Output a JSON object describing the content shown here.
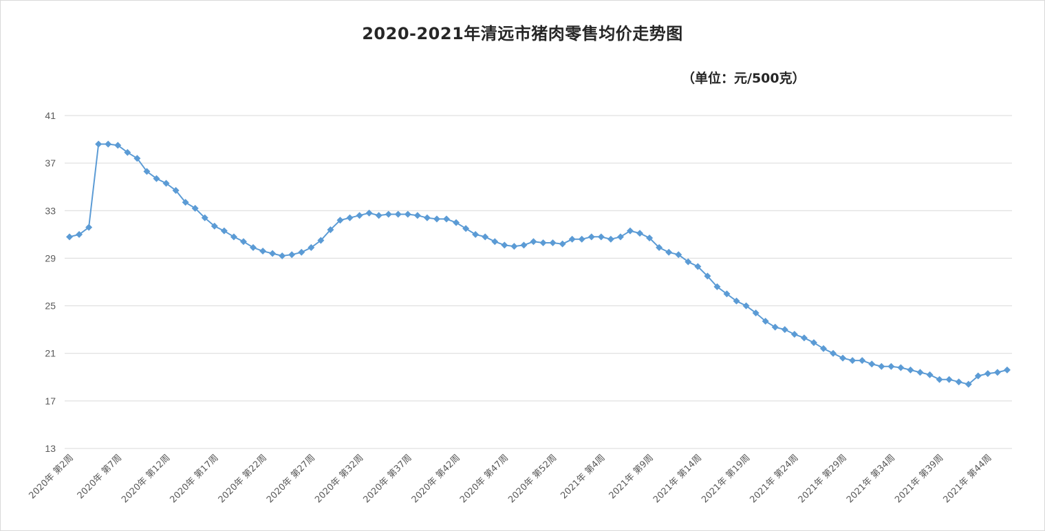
{
  "chart_data": {
    "type": "line",
    "title": "2020-2021年清远市猪肉零售均价走势图",
    "subtitle": "（单位：元/500克）",
    "xlabel": "",
    "ylabel": "",
    "ylim": [
      13,
      41
    ],
    "yticks": [
      13,
      17,
      21,
      25,
      29,
      33,
      37,
      41
    ],
    "grid": true,
    "legend": "none",
    "color": "#5b9bd5",
    "marker": "diamond",
    "x_tick_labels": [
      "2020年 第2周",
      "2020年 第7周",
      "2020年 第12周",
      "2020年 第17周",
      "2020年 第22周",
      "2020年 第27周",
      "2020年 第32周",
      "2020年 第37周",
      "2020年 第42周",
      "2020年 第47周",
      "2020年 第52周",
      "2021年 第4周",
      "2021年 第9周",
      "2021年 第14周",
      "2021年 第19周",
      "2021年 第24周",
      "2021年 第29周",
      "2021年 第34周",
      "2021年 第39周",
      "2021年 第44周"
    ],
    "x_tick_every": 5,
    "series": [
      {
        "values": [
          30.8,
          31.0,
          31.6,
          38.6,
          38.6,
          38.5,
          37.9,
          37.4,
          36.3,
          35.7,
          35.3,
          34.7,
          33.7,
          33.2,
          32.4,
          31.7,
          31.3,
          30.8,
          30.4,
          29.9,
          29.6,
          29.4,
          29.2,
          29.3,
          29.5,
          29.9,
          30.5,
          31.4,
          32.2,
          32.4,
          32.6,
          32.8,
          32.6,
          32.7,
          32.7,
          32.7,
          32.6,
          32.4,
          32.3,
          32.3,
          32.0,
          31.5,
          31.0,
          30.8,
          30.4,
          30.1,
          30.0,
          30.1,
          30.4,
          30.3,
          30.3,
          30.2,
          30.6,
          30.6,
          30.8,
          30.8,
          30.6,
          30.8,
          31.3,
          31.1,
          30.7,
          29.9,
          29.5,
          29.3,
          28.7,
          28.3,
          27.5,
          26.6,
          26.0,
          25.4,
          25.0,
          24.4,
          23.7,
          23.2,
          23.0,
          22.6,
          22.3,
          21.9,
          21.4,
          21.0,
          20.6,
          20.4,
          20.4,
          20.1,
          19.9,
          19.9,
          19.8,
          19.6,
          19.4,
          19.2,
          18.8,
          18.8,
          18.6,
          18.4,
          19.1,
          19.3,
          19.4,
          19.6
        ]
      }
    ]
  }
}
